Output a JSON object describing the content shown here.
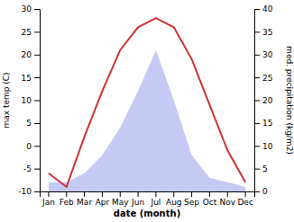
{
  "chart_data": {
    "type": "line",
    "xlabel": "date (month)",
    "ylabel": "max temp (C)",
    "y2label": "med. precipitation (kg/m2)",
    "categories": [
      "Jan",
      "Feb",
      "Mar",
      "Apr",
      "May",
      "Jun",
      "Jul",
      "Aug",
      "Sep",
      "Oct",
      "Nov",
      "Dec"
    ],
    "series": [
      {
        "type": "area",
        "axis": "y2",
        "color": "#c5caf5",
        "values": [
          2,
          2,
          4,
          8,
          14,
          22,
          31,
          20,
          8,
          3,
          2,
          1
        ]
      },
      {
        "type": "line",
        "color": "#cc3333",
        "values": [
          -6,
          -9,
          2,
          12,
          21,
          26,
          28,
          26,
          19,
          9,
          -1,
          -8
        ]
      }
    ],
    "ylim": [
      -10,
      30
    ],
    "yticks": [
      -10,
      -5,
      0,
      5,
      10,
      15,
      20,
      25,
      30
    ],
    "y2lim": [
      0,
      40
    ],
    "y2ticks": [
      0,
      5,
      10,
      15,
      20,
      25,
      30,
      35,
      40
    ],
    "grid": false
  }
}
